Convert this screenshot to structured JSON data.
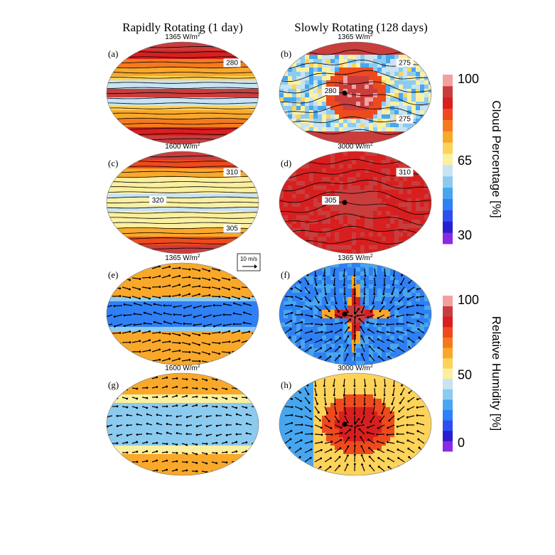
{
  "column_titles": [
    "Rapidly Rotating (1 day)",
    "Slowly Rotating (128 days)"
  ],
  "colors": {
    "cloud_scale": [
      "#8a2be2",
      "#2a1fd0",
      "#2d4ff0",
      "#2f7ff5",
      "#47a6f0",
      "#8ccbf0",
      "#c8e3f2",
      "#fbf0a0",
      "#fdd35a",
      "#f9a82a",
      "#f47a1f",
      "#ee4a1e",
      "#d81f1f",
      "#c93d3d",
      "#f2a0a0"
    ],
    "humidity_scale": [
      "#8a2be2",
      "#2a1fd0",
      "#2d4ff0",
      "#2f7ff5",
      "#47a6f0",
      "#8ccbf0",
      "#c8e3f2",
      "#fbf0a0",
      "#fdd35a",
      "#f9a82a",
      "#f47a1f",
      "#ee4a1e",
      "#d81f1f",
      "#c93d3d",
      "#f2a0a0"
    ],
    "dayside_marker": "#000000"
  },
  "chart_data": [
    {
      "id": "a",
      "type": "heatmap",
      "label": "(a)",
      "title": "1365 W/m",
      "title_sup": "2",
      "variable": "cloud_percentage",
      "rotation": "rapid",
      "pattern": "zonal_bands",
      "overlay": "temperature_contours",
      "contour_labels": [
        "280"
      ]
    },
    {
      "id": "b",
      "type": "heatmap",
      "label": "(b)",
      "title": "1365 W/m",
      "title_sup": "2",
      "variable": "cloud_percentage",
      "rotation": "slow",
      "pattern": "substellar_cloud_deck",
      "overlay": "temperature_contours",
      "contour_labels": [
        "275",
        "280",
        "275"
      ],
      "substellar_point": true
    },
    {
      "id": "c",
      "type": "heatmap",
      "label": "(c)",
      "title": "1600 W/m",
      "title_sup": "2",
      "variable": "cloud_percentage",
      "rotation": "rapid",
      "pattern": "zonal_bands_weak",
      "overlay": "temperature_contours",
      "contour_labels": [
        "310",
        "320",
        "305"
      ]
    },
    {
      "id": "d",
      "type": "heatmap",
      "label": "(d)",
      "title": "3000 W/m",
      "title_sup": "2",
      "variable": "cloud_percentage",
      "rotation": "slow",
      "pattern": "global_cloud_cover",
      "overlay": "temperature_contours",
      "contour_labels": [
        "310",
        "305"
      ],
      "substellar_point": true
    },
    {
      "id": "e",
      "type": "heatmap",
      "label": "(e)",
      "title": "1365 W/m",
      "title_sup": "2",
      "variable": "relative_humidity",
      "rotation": "rapid",
      "pattern": "humid_midlatitudes",
      "overlay": "wind_vectors",
      "reference_vector": "10 m/s"
    },
    {
      "id": "f",
      "type": "heatmap",
      "label": "(f)",
      "title": "1365 W/m",
      "title_sup": "2",
      "variable": "relative_humidity",
      "rotation": "slow",
      "pattern": "substellar_cross",
      "overlay": "wind_vectors",
      "substellar_point": true
    },
    {
      "id": "g",
      "type": "heatmap",
      "label": "(g)",
      "title": "1600 W/m",
      "title_sup": "2",
      "variable": "relative_humidity",
      "rotation": "rapid",
      "pattern": "humid_poles_dry_tropics",
      "overlay": "wind_vectors"
    },
    {
      "id": "h",
      "type": "heatmap",
      "label": "(h)",
      "title": "3000 W/m",
      "title_sup": "2",
      "variable": "relative_humidity",
      "rotation": "slow",
      "pattern": "substellar_humid_region",
      "overlay": "wind_vectors",
      "substellar_point": true
    }
  ],
  "colorbars": [
    {
      "id": "cloud",
      "label": "Cloud Percentage [%]",
      "ticks": [
        "100",
        "65",
        "30"
      ],
      "range": [
        30,
        100
      ]
    },
    {
      "id": "humidity",
      "label": "Relative Humidity [%]",
      "ticks": [
        "100",
        "50",
        "0"
      ],
      "range": [
        0,
        100
      ]
    }
  ]
}
